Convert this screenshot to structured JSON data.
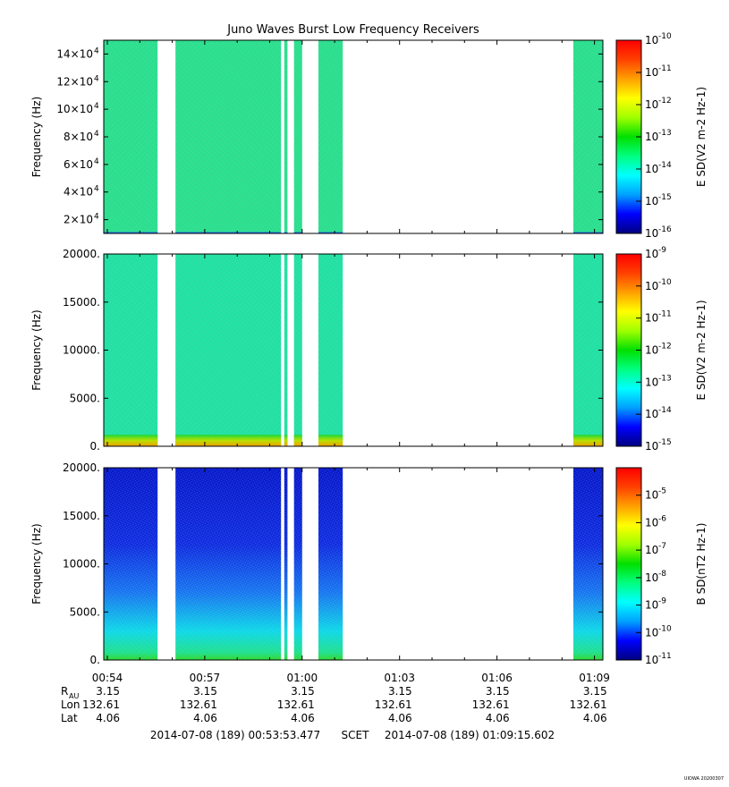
{
  "title": "Juno Waves Burst Low Frequency Receivers",
  "footer": {
    "start": "2014-07-08 (189) 00:53:53.477",
    "scet": "SCET",
    "end": "2014-07-08 (189) 01:09:15.602",
    "credit": "UIOWA 20200307"
  },
  "ephemeris": {
    "time_ticks": [
      "00:54",
      "00:57",
      "01:00",
      "01:03",
      "01:06",
      "01:09"
    ],
    "rows": [
      {
        "label": "R",
        "sub": "AU",
        "values": [
          "3.15",
          "3.15",
          "3.15",
          "3.15",
          "3.15",
          "3.15"
        ]
      },
      {
        "label": "Lon",
        "sub": "",
        "values": [
          "132.61",
          "132.61",
          "132.61",
          "132.61",
          "132.61",
          "132.61"
        ]
      },
      {
        "label": "Lat",
        "sub": "",
        "values": [
          "4.06",
          "4.06",
          "4.06",
          "4.06",
          "4.06",
          "4.06"
        ]
      }
    ]
  },
  "chart_data": [
    {
      "type": "heatmap",
      "ylabel": "Frequency (Hz)",
      "colorbar_label": "E SD(V2 m-2 Hz-1)",
      "ylim": [
        10000,
        150000
      ],
      "yticks": [
        {
          "value": 20000,
          "mant": "2×10",
          "exp": "4"
        },
        {
          "value": 40000,
          "mant": "4×10",
          "exp": "4"
        },
        {
          "value": 60000,
          "mant": "6×10",
          "exp": "4"
        },
        {
          "value": 80000,
          "mant": "8×10",
          "exp": "4"
        },
        {
          "value": 100000,
          "mant": "10×10",
          "exp": "4"
        },
        {
          "value": 120000,
          "mant": "12×10",
          "exp": "4"
        },
        {
          "value": 140000,
          "mant": "14×10",
          "exp": "4"
        }
      ],
      "clim_exp": [
        -16,
        -10
      ],
      "cticks": [
        "-10",
        "-11",
        "-12",
        "-13",
        "-14",
        "-15",
        "-16"
      ],
      "background": "#2bde8e",
      "low_band": "#1f6fe8",
      "low_band_top": 11000,
      "hot_band": null,
      "gradient": null
    },
    {
      "type": "heatmap",
      "ylabel": "Frequency (Hz)",
      "colorbar_label": "E SD(V2 m-2 Hz-1)",
      "ylim": [
        0,
        20000
      ],
      "yticks": [
        {
          "value": 0,
          "mant": "0.",
          "exp": ""
        },
        {
          "value": 5000,
          "mant": "5000.",
          "exp": ""
        },
        {
          "value": 10000,
          "mant": "10000.",
          "exp": ""
        },
        {
          "value": 15000,
          "mant": "15000.",
          "exp": ""
        },
        {
          "value": 20000,
          "mant": "20000.",
          "exp": ""
        }
      ],
      "clim_exp": [
        -15,
        -9
      ],
      "cticks": [
        "-9",
        "-10",
        "-11",
        "-12",
        "-13",
        "-14",
        "-15"
      ],
      "background": "#22e0a2",
      "low_band": null,
      "hot_band": {
        "top_hz": 1200,
        "colors": [
          "#20d838",
          "#b8e000",
          "#f0a000"
        ]
      },
      "gradient": null
    },
    {
      "type": "heatmap",
      "ylabel": "Frequency (Hz)",
      "colorbar_label": "B SD(nT2 Hz-1)",
      "ylim": [
        0,
        20000
      ],
      "yticks": [
        {
          "value": 0,
          "mant": "0.",
          "exp": ""
        },
        {
          "value": 5000,
          "mant": "5000.",
          "exp": ""
        },
        {
          "value": 10000,
          "mant": "10000.",
          "exp": ""
        },
        {
          "value": 15000,
          "mant": "15000.",
          "exp": ""
        },
        {
          "value": 20000,
          "mant": "20000.",
          "exp": ""
        }
      ],
      "clim_exp": [
        -11,
        -4
      ],
      "cticks": [
        "-5",
        "-6",
        "-7",
        "-8",
        "-9",
        "-10",
        "-11"
      ],
      "background": null,
      "low_band": null,
      "hot_band": null,
      "gradient": {
        "stops": [
          {
            "hz": 20000,
            "color": "#0a1ccc"
          },
          {
            "hz": 12000,
            "color": "#1230e0"
          },
          {
            "hz": 7000,
            "color": "#1a78f0"
          },
          {
            "hz": 3000,
            "color": "#10d8e8"
          },
          {
            "hz": 800,
            "color": "#20e090"
          },
          {
            "hz": 0,
            "color": "#30d830"
          }
        ]
      }
    }
  ],
  "time_axis": {
    "start_min": 53.891,
    "end_min": 69.26,
    "data_segments": [
      [
        53.891,
        55.55
      ],
      [
        56.1,
        59.35
      ],
      [
        59.45,
        59.55
      ],
      [
        59.75,
        60.0
      ],
      [
        60.5,
        61.25
      ],
      [
        68.35,
        69.26
      ]
    ]
  },
  "colorscale": [
    "#000080",
    "#0000ff",
    "#00a0ff",
    "#00ffff",
    "#00ff80",
    "#00e000",
    "#a0ff00",
    "#ffff00",
    "#ffa000",
    "#ff4000",
    "#ff0000"
  ]
}
